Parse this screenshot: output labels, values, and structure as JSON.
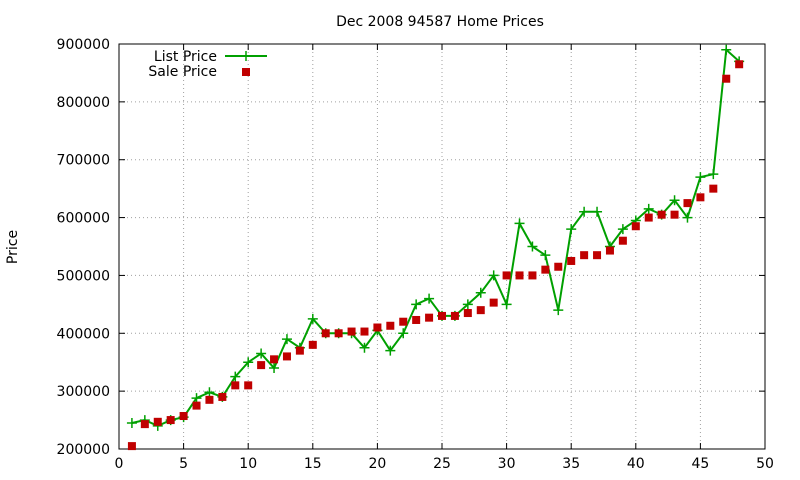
{
  "chart_data": {
    "type": "line",
    "title": "Dec 2008 94587 Home Prices",
    "xlabel": "",
    "ylabel": "Price",
    "xlim": [
      0,
      50
    ],
    "ylim": [
      200000,
      900000
    ],
    "xticks": [
      0,
      5,
      10,
      15,
      20,
      25,
      30,
      35,
      40,
      45,
      50
    ],
    "yticks": [
      200000,
      300000,
      400000,
      500000,
      600000,
      700000,
      800000,
      900000
    ],
    "grid": true,
    "legend_position": "top-left",
    "x": [
      1,
      2,
      3,
      4,
      5,
      6,
      7,
      8,
      9,
      10,
      11,
      12,
      13,
      14,
      15,
      16,
      17,
      18,
      19,
      20,
      21,
      22,
      23,
      24,
      25,
      26,
      27,
      28,
      29,
      30,
      31,
      32,
      33,
      34,
      35,
      36,
      37,
      38,
      39,
      40,
      41,
      42,
      43,
      44,
      45,
      46,
      47,
      48
    ],
    "series": [
      {
        "name": "List Price",
        "style": "linespoints",
        "color": "#00a000",
        "marker": "plus",
        "values": [
          245000,
          250000,
          240000,
          250000,
          255000,
          288000,
          298000,
          290000,
          325000,
          350000,
          365000,
          340000,
          390000,
          375000,
          425000,
          400000,
          400000,
          400000,
          375000,
          405000,
          370000,
          400000,
          450000,
          460000,
          430000,
          430000,
          450000,
          470000,
          500000,
          450000,
          590000,
          550000,
          535000,
          440000,
          580000,
          610000,
          610000,
          550000,
          580000,
          595000,
          615000,
          605000,
          630000,
          600000,
          670000,
          675000,
          890000,
          870000
        ]
      },
      {
        "name": "Sale Price",
        "style": "points",
        "color": "#c00000",
        "marker": "square",
        "values": [
          205000,
          243000,
          247000,
          250000,
          257000,
          275000,
          285000,
          290000,
          310000,
          310000,
          345000,
          355000,
          360000,
          370000,
          380000,
          400000,
          400000,
          403000,
          403000,
          410000,
          413000,
          420000,
          423000,
          427000,
          430000,
          430000,
          435000,
          440000,
          453000,
          500000,
          500000,
          500000,
          510000,
          515000,
          525000,
          535000,
          535000,
          543000,
          560000,
          585000,
          600000,
          605000,
          605000,
          625000,
          635000,
          650000,
          840000,
          865000
        ]
      }
    ]
  }
}
